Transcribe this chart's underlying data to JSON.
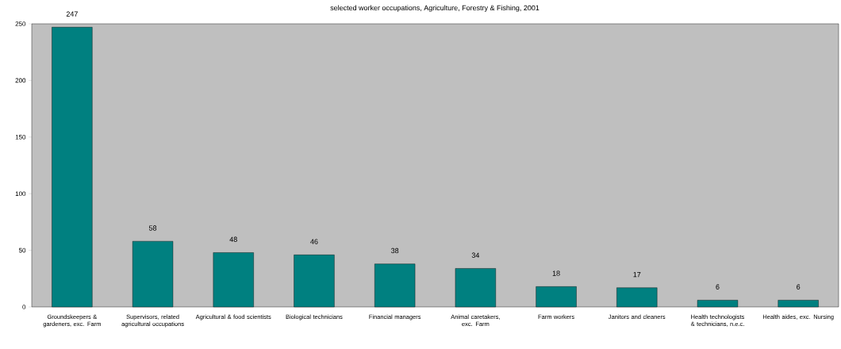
{
  "chart_data": {
    "type": "bar",
    "title": "selected worker occupations, Agriculture, Forestry & Fishing, 2001",
    "categories": [
      "Groundskeepers & gardeners, exc. Farm",
      "Supervisors, related agricultural occupations",
      "Agricultural & food scientists",
      "Biological technicians",
      "Financial managers",
      "Animal caretakers, exc. Farm",
      "Farm workers",
      "Janitors and cleaners",
      "Health technologists & technicians, n.e.c.",
      "Health aides, exc. Nursing"
    ],
    "values": [
      247,
      58,
      48,
      46,
      38,
      34,
      18,
      17,
      6,
      6
    ],
    "color": "#008080",
    "ylim": [
      0,
      250
    ],
    "yticks": [
      0,
      50,
      100,
      150,
      200,
      250
    ],
    "data_labels": true,
    "grid": false
  }
}
